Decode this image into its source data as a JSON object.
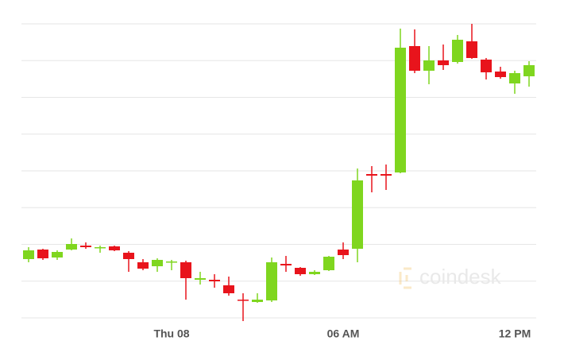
{
  "chart_data": {
    "type": "candlestick",
    "watermark": "coindesk",
    "categories": [
      null,
      null,
      null,
      null,
      null,
      null,
      null,
      null,
      null,
      null,
      "Thu 08",
      null,
      null,
      null,
      null,
      null,
      null,
      null,
      null,
      null,
      null,
      null,
      "06 AM",
      null,
      null,
      null,
      null,
      null,
      null,
      null,
      null,
      null,
      null,
      null,
      "12 PM",
      null
    ],
    "open": [
      74,
      86,
      76,
      86,
      91,
      88.5,
      90,
      82,
      70,
      65,
      70,
      70,
      48,
      48,
      41,
      23,
      20,
      22,
      68,
      63,
      55,
      60,
      86,
      87,
      181,
      181,
      183,
      342,
      311,
      324,
      322,
      348,
      325,
      310,
      295,
      304
    ],
    "high": [
      89,
      87,
      85,
      100,
      95,
      91,
      91,
      84,
      74,
      75,
      73,
      72,
      58,
      55,
      52,
      31,
      31,
      76,
      78,
      64,
      60,
      78,
      95,
      188,
      191,
      193,
      364,
      363,
      342,
      344,
      356,
      370,
      327,
      316,
      311,
      323
    ],
    "low": [
      70,
      73,
      73,
      85,
      87,
      82,
      84,
      58,
      60,
      58,
      60,
      23,
      42,
      38,
      28,
      -4,
      19,
      20,
      58,
      53,
      54,
      59,
      74,
      70,
      158,
      161,
      182,
      308,
      294,
      312,
      320,
      326,
      300,
      301,
      282,
      291
    ],
    "close": [
      85,
      75,
      83,
      93,
      89,
      89,
      85,
      74,
      62,
      73,
      71,
      50,
      50,
      46,
      31,
      22,
      23,
      70,
      66,
      55,
      58,
      77,
      79,
      173,
      179,
      179,
      340,
      311,
      324,
      318,
      350,
      327,
      309,
      303,
      308,
      318
    ],
    "up_color": "#7fd61f",
    "down_color": "#e8141c",
    "ylim": [
      -10,
      380
    ],
    "yticks": [
      0,
      46.25,
      92.5,
      138.75,
      185,
      231.25,
      277.5,
      323.75,
      370
    ],
    "grid": true
  }
}
